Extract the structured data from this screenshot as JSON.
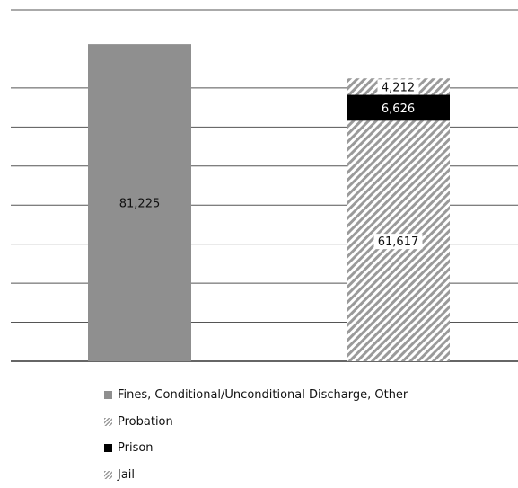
{
  "chart_data": {
    "type": "bar",
    "stacked": true,
    "categories": [
      "",
      ""
    ],
    "ylim": [
      0,
      90000
    ],
    "grid": true,
    "legend_position": "bottom-left",
    "series": [
      {
        "name": "Fines, Conditional/Unconditional Discharge, Other",
        "values": [
          81225,
          null
        ],
        "labels": [
          "81,225",
          ""
        ],
        "color": "#8f8f8f",
        "pattern": "solid"
      },
      {
        "name": "Jail",
        "values": [
          null,
          61617
        ],
        "labels": [
          "",
          "61,617"
        ],
        "color": "#9a9a9a",
        "pattern": "hatched"
      },
      {
        "name": "Prison",
        "values": [
          null,
          6626
        ],
        "labels": [
          "",
          "6,626"
        ],
        "color": "#000000",
        "pattern": "solid"
      },
      {
        "name": "Probation",
        "values": [
          null,
          4212
        ],
        "labels": [
          "",
          "4,212"
        ],
        "color": "#9a9a9a",
        "pattern": "hatched"
      }
    ]
  },
  "legend": [
    {
      "label": "Fines, Conditional/Unconditional Discharge, Other",
      "swatch": "solid"
    },
    {
      "label": "Probation",
      "swatch": "hatch"
    },
    {
      "label": "Prison",
      "swatch": "prison"
    },
    {
      "label": "Jail",
      "swatch": "hatch"
    }
  ]
}
